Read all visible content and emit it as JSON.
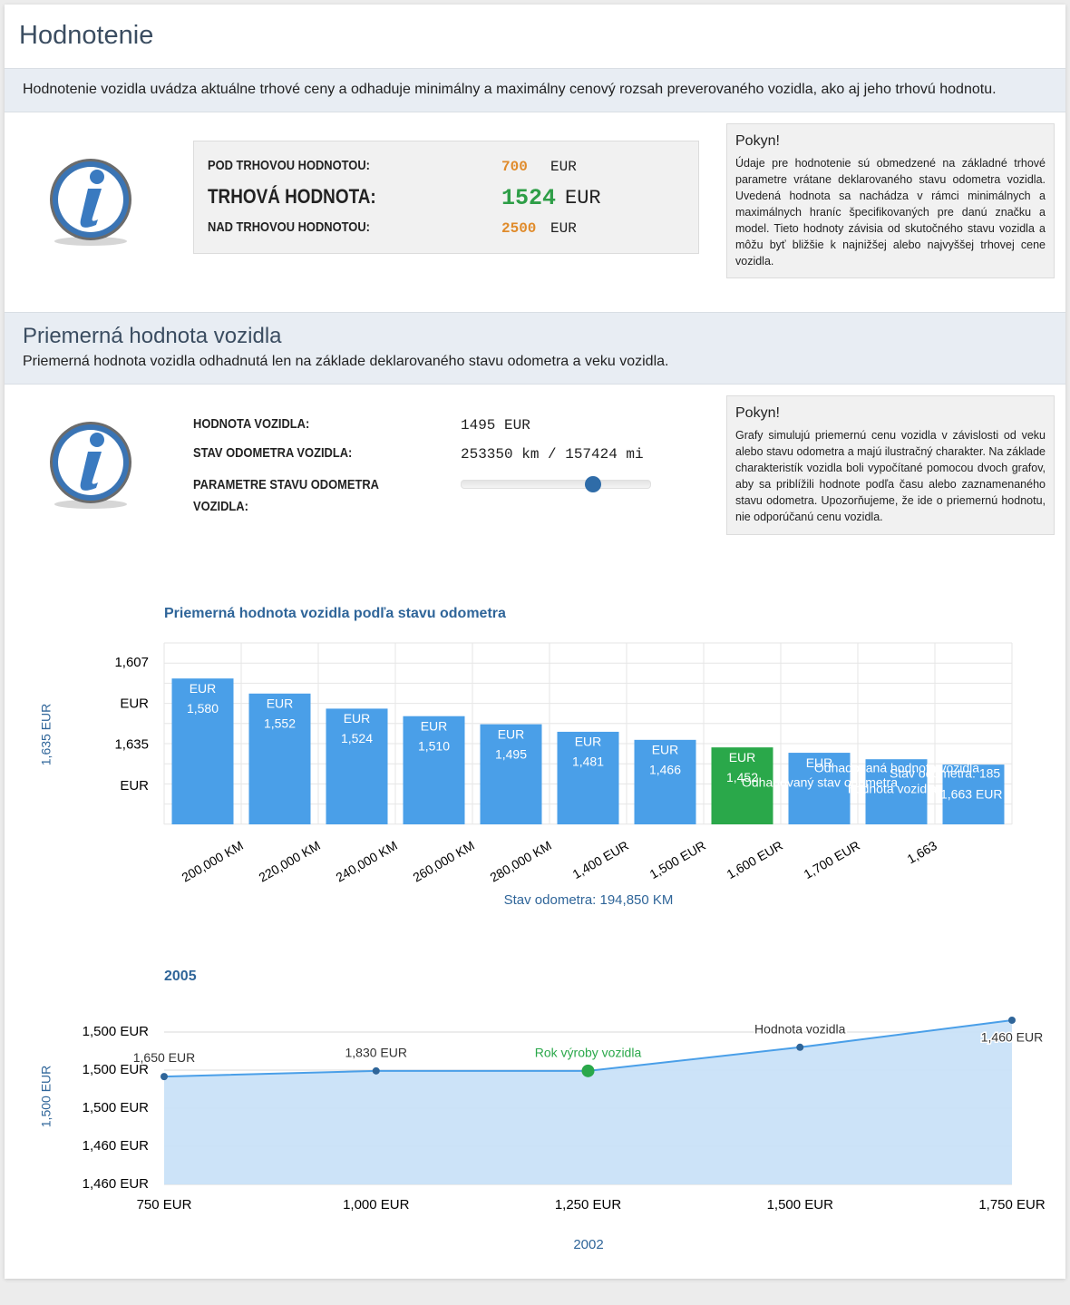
{
  "header": {
    "title": "Hodnotenie"
  },
  "intro": "Hodnotenie vozidla uvádza aktuálne trhové ceny a odhaduje minimálny a maximálny cenový rozsah preverovaného vozidla, ako aj jeho trhovú hodnotu.",
  "valuation": {
    "rows": [
      {
        "label": "POD TRHOVOU HODNOTOU:",
        "value": 700,
        "currency": "EUR"
      },
      {
        "label": "TRHOVÁ HODNOTA:",
        "value": 1524,
        "currency": "EUR"
      },
      {
        "label": "NAD TRHOVOU HODNOTOU:",
        "value": 2500,
        "currency": "EUR"
      }
    ]
  },
  "note1": {
    "title": "Pokyn!",
    "text": "Údaje pre hodnotenie sú obmedzené na základné trhové parametre vrátane deklarovaného stavu odometra vozidla. Uvedená hodnota sa nachádza v rámci minimálnych a maximálnych hraníc špecifikovaných pre danú značku a model. Tieto hodnoty závisia od skutočného stavu vozidla a môžu byť bližšie k najnižšej alebo najvyššej trhovej cene vozidla."
  },
  "average": {
    "title": "Priemerná hodnota vozidla",
    "subtitle": "Priemerná hodnota vozidla odhadnutá len na základe deklarovaného stavu odometra a veku vozidla.",
    "rows": [
      {
        "label": "HODNOTA VOZIDLA:",
        "value": "1495 EUR"
      },
      {
        "label": "STAV ODOMETRA VOZIDLA:",
        "value": "253350 km / 157424 mi"
      },
      {
        "label": "PARAMETRE STAVU ODOMETRA VOZIDLA:"
      }
    ],
    "note": {
      "title": "Pokyn!",
      "text": "Grafy simulujú priemernú cenu vozidla v závislosti od veku alebo stavu odometra a majú ilustračný charakter. Na základe charakteristík vozidla boli vypočítané pomocou dvoch grafov, aby sa priblížili hodnote podľa času alebo zaznamenaného stavu odometra. Upozorňujeme, že ide o priemernú hodnotu, nie odporúčanú cenu vozidla."
    }
  },
  "chart_data": [
    {
      "type": "bar",
      "title": "Priemerná hodnota vozidla podľa stavu odometra",
      "x_label": "Stav odometra: 194,850 KM",
      "y_label": "1,635 EUR",
      "y_axis_labels": [
        "1,607",
        "EUR",
        "1,635",
        "EUR"
      ],
      "categories": [
        "200,000 KM",
        "220,000 KM",
        "240,000 KM",
        "260,000 KM",
        "280,000 KM",
        "1,400 EUR",
        "1,500 EUR",
        "1,600 EUR",
        "1,700 EUR",
        "1,663",
        null
      ],
      "values": [
        1580,
        1552,
        1524,
        1510,
        1495,
        1481,
        1466,
        1452,
        1442,
        1430,
        1420
      ],
      "value_label_units": [
        "EUR",
        "EUR",
        "EUR",
        "EUR",
        "EUR",
        "EUR",
        "EUR",
        "EUR",
        "EUR",
        null,
        null
      ],
      "value_labels": [
        "1,580",
        "1,552",
        "1,524",
        "1,510",
        "1,495",
        "1,481",
        "1,466",
        "1,452",
        null,
        null,
        null
      ],
      "colors": [
        "#4a9fe8",
        "#4a9fe8",
        "#4a9fe8",
        "#4a9fe8",
        "#4a9fe8",
        "#4a9fe8",
        "#4a9fe8",
        "#2aa84a",
        "#4a9fe8",
        "#4a9fe8",
        "#4a9fe8"
      ],
      "annotations": [
        "Odhadovaná hodnota vozidla",
        "Odhadovaný stav odometra",
        "Stav odometra: 185",
        "hodnota vozidla",
        "1,663 EUR"
      ],
      "ylim": [
        1309,
        1646
      ],
      "grid": true
    },
    {
      "type": "line",
      "title": "2005",
      "x_label": "2002",
      "y_label": "1,500 EUR",
      "y_axis_labels": [
        "1,500 EUR",
        "1,500 EUR",
        "1,500 EUR",
        "1,460 EUR",
        "1,460 EUR"
      ],
      "categories": [
        "750 EUR",
        "1,000 EUR",
        "1,250 EUR",
        "1,500 EUR",
        "1,750 EUR"
      ],
      "values": [
        1488.3,
        1489.8,
        1489.8,
        1496,
        1503.1
      ],
      "point_labels": [
        "1,650 EUR",
        "1,830 EUR",
        "Rok výroby vozidla",
        "Hodnota vozidla",
        "1,460 EUR"
      ],
      "color": "#4a9fe8",
      "fill": "#c9e2f8",
      "point_color": "#2f6599",
      "highlight_color": "#2aa84a",
      "ylim": [
        1460,
        1505
      ],
      "grid": true
    }
  ]
}
